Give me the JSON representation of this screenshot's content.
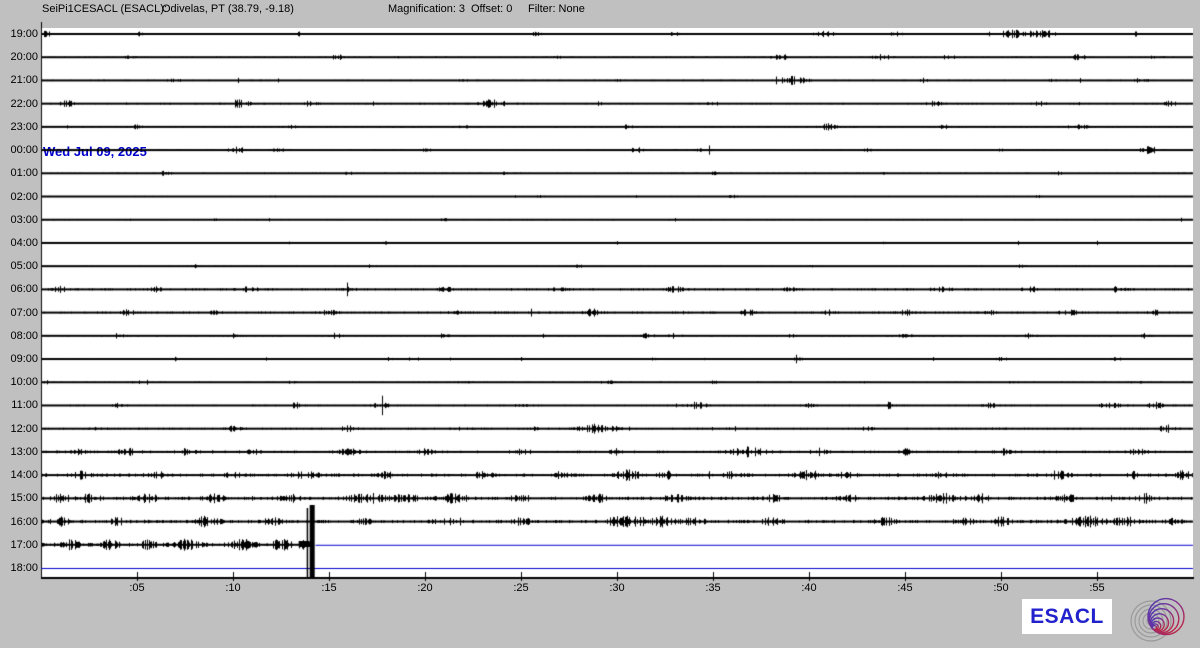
{
  "header": {
    "station": "SeiPi1CESACL (ESACL):",
    "location": "Odivelas, PT (38.79, -9.18)",
    "magnification_label": "Magnification: 3",
    "offset_label": "Offset: 0",
    "filter_label": "Filter: None"
  },
  "date_label": "Wed Jul 09, 2025",
  "branding": {
    "wordmark": "ESACL"
  },
  "colors": {
    "background": "#c0c0c0",
    "plot_background": "#ffffff",
    "trace": "#000000",
    "no_data_line": "#0000cc",
    "date_text": "#0000cc",
    "wordmark_text": "#2222cc"
  },
  "chart_data": {
    "type": "line",
    "kind": "helicorder",
    "minutes_per_row": 60,
    "minute_ticks": [
      ":05",
      ":10",
      ":15",
      ":20",
      ":25",
      ":30",
      ":35",
      ":40",
      ":45",
      ":50",
      ":55"
    ],
    "big_event": {
      "row_label": "17:00",
      "minute": 14.15,
      "description": "clipped high-amplitude spike spanning rows 16:00-17:00, data ends after this event"
    },
    "rows": [
      {
        "label": "19:00",
        "noise": 0.55,
        "end": 60,
        "events": [
          [
            0.3,
            2.5,
            0.25
          ],
          [
            5.2,
            1.5,
            0.2
          ],
          [
            13.5,
            1.5,
            0.2
          ],
          [
            25.8,
            1.8,
            0.3
          ],
          [
            33,
            1.5,
            0.25
          ],
          [
            40.8,
            2,
            0.5
          ],
          [
            44.5,
            1.8,
            0.3
          ],
          [
            50.8,
            2.8,
            1.1
          ],
          [
            52.3,
            2.2,
            0.5
          ],
          [
            57,
            1.8,
            0.3
          ]
        ]
      },
      {
        "label": "20:00",
        "noise": 0.55,
        "end": 60,
        "events": [
          [
            4.5,
            1.5,
            0.25
          ],
          [
            15.4,
            2,
            0.3
          ],
          [
            27,
            1.3,
            0.2
          ],
          [
            38.5,
            2.2,
            0.4
          ],
          [
            43.8,
            1.8,
            0.5
          ],
          [
            47.3,
            1.8,
            0.4
          ],
          [
            54,
            1.8,
            0.45
          ],
          [
            58,
            1.5,
            0.3
          ]
        ]
      },
      {
        "label": "21:00",
        "noise": 0.55,
        "end": 60,
        "events": [
          [
            7,
            1.8,
            0.3
          ],
          [
            22,
            1.4,
            0.25
          ],
          [
            30,
            1.3,
            0.2
          ],
          [
            39.2,
            2.8,
            0.8
          ],
          [
            46,
            1.5,
            0.3
          ],
          [
            52.5,
            1.4,
            0.25
          ],
          [
            57.2,
            1.8,
            0.35
          ]
        ]
      },
      {
        "label": "22:00",
        "noise": 0.6,
        "end": 60,
        "events": [
          [
            1.4,
            2.2,
            0.4
          ],
          [
            10.3,
            2.6,
            0.6
          ],
          [
            14,
            1.8,
            0.35
          ],
          [
            23.6,
            3,
            0.7
          ],
          [
            29,
            1.5,
            0.3
          ],
          [
            35,
            1.5,
            0.3
          ],
          [
            46.5,
            1.8,
            0.4
          ],
          [
            52,
            1.5,
            0.3
          ],
          [
            58.8,
            2,
            0.3
          ]
        ]
      },
      {
        "label": "23:00",
        "noise": 0.6,
        "end": 60,
        "events": [
          [
            5,
            1.4,
            0.25
          ],
          [
            13,
            1.5,
            0.3
          ],
          [
            22,
            1.3,
            0.25
          ],
          [
            30.5,
            1.4,
            0.3
          ],
          [
            41,
            2.2,
            0.4
          ],
          [
            47,
            1.4,
            0.3
          ],
          [
            54,
            1.8,
            0.45
          ]
        ]
      },
      {
        "label": "00:00",
        "noise": 0.6,
        "end": 60,
        "events": [
          [
            3,
            1.4,
            0.25
          ],
          [
            10.2,
            2.2,
            0.4
          ],
          [
            12.3,
            1.8,
            0.3
          ],
          [
            20,
            1.3,
            0.25
          ],
          [
            31,
            1.8,
            0.3
          ],
          [
            34.5,
            1.4,
            0.3
          ],
          [
            43,
            1.4,
            0.35
          ],
          [
            50,
            1.3,
            0.25
          ],
          [
            57.6,
            2.2,
            0.4
          ]
        ]
      },
      {
        "label": "01:00",
        "noise": 0.55,
        "end": 60,
        "events": [
          [
            6.5,
            1.8,
            0.3
          ],
          [
            16,
            1.2,
            0.2
          ],
          [
            24,
            1.3,
            0.25
          ],
          [
            35,
            1.2,
            0.2
          ],
          [
            44,
            1.3,
            0.25
          ],
          [
            53,
            1.2,
            0.2
          ]
        ]
      },
      {
        "label": "02:00",
        "noise": 0.45,
        "end": 60,
        "events": [
          [
            12,
            1.3,
            0.2
          ],
          [
            26,
            1.1,
            0.2
          ],
          [
            36,
            1.1,
            0.2
          ],
          [
            52,
            1.2,
            0.2
          ]
        ]
      },
      {
        "label": "03:00",
        "noise": 0.45,
        "end": 60,
        "events": [
          [
            9,
            1.1,
            0.2
          ],
          [
            21,
            1.2,
            0.2
          ],
          [
            33,
            1.1,
            0.2
          ],
          [
            48,
            1.2,
            0.2
          ]
        ]
      },
      {
        "label": "04:00",
        "noise": 0.45,
        "end": 60,
        "events": [
          [
            2,
            1.4,
            0.2
          ],
          [
            18,
            1.1,
            0.2
          ],
          [
            30,
            1.2,
            0.2
          ],
          [
            44,
            1.1,
            0.2
          ],
          [
            55,
            1.2,
            0.2
          ]
        ]
      },
      {
        "label": "05:00",
        "noise": 0.45,
        "end": 60,
        "events": [
          [
            8,
            1.1,
            0.2
          ],
          [
            17,
            1.2,
            0.2
          ],
          [
            28,
            1.1,
            0.2
          ],
          [
            40,
            1.2,
            0.2
          ],
          [
            51,
            1.1,
            0.2
          ]
        ]
      },
      {
        "label": "06:00",
        "noise": 0.8,
        "end": 60,
        "events": [
          [
            1,
            1.8,
            0.4
          ],
          [
            6,
            1.5,
            0.3
          ],
          [
            10.8,
            1.8,
            0.45
          ],
          [
            16,
            1.5,
            0.35
          ],
          [
            21,
            1.7,
            0.4
          ],
          [
            27,
            1.5,
            0.35
          ],
          [
            33,
            1.8,
            0.45
          ],
          [
            39,
            1.5,
            0.35
          ],
          [
            46.8,
            2.2,
            0.5
          ],
          [
            51.5,
            1.8,
            0.4
          ],
          [
            56,
            1.8,
            0.4
          ]
        ]
      },
      {
        "label": "07:00",
        "noise": 0.8,
        "end": 60,
        "events": [
          [
            4.5,
            1.8,
            0.35
          ],
          [
            9,
            1.5,
            0.3
          ],
          [
            15,
            1.8,
            0.45
          ],
          [
            21.5,
            1.5,
            0.35
          ],
          [
            28.8,
            2.6,
            0.5
          ],
          [
            36.8,
            1.8,
            0.4
          ],
          [
            41,
            1.5,
            0.3
          ],
          [
            45,
            1.8,
            0.4
          ],
          [
            49.5,
            1.5,
            0.35
          ],
          [
            53.5,
            1.8,
            0.45
          ],
          [
            58,
            1.5,
            0.3
          ]
        ]
      },
      {
        "label": "08:00",
        "noise": 0.6,
        "end": 60,
        "events": [
          [
            4,
            1.6,
            0.3
          ],
          [
            10,
            1.4,
            0.3
          ],
          [
            15.5,
            1.3,
            0.25
          ],
          [
            21,
            1.6,
            0.35
          ],
          [
            26,
            1.3,
            0.25
          ],
          [
            31.5,
            1.8,
            0.35
          ],
          [
            33,
            1.6,
            0.3
          ],
          [
            39,
            1.3,
            0.25
          ],
          [
            45,
            1.4,
            0.3
          ],
          [
            51.5,
            1.6,
            0.35
          ],
          [
            57.5,
            1.8,
            0.3
          ]
        ]
      },
      {
        "label": "09:00",
        "noise": 0.5,
        "end": 60,
        "events": [
          [
            7,
            1.2,
            0.25
          ],
          [
            18,
            1.2,
            0.25
          ],
          [
            25,
            1.3,
            0.25
          ],
          [
            32,
            1.2,
            0.25
          ],
          [
            39.5,
            1.8,
            0.35
          ],
          [
            45,
            1.2,
            0.25
          ],
          [
            50,
            1.4,
            0.3
          ],
          [
            56,
            1.2,
            0.25
          ]
        ]
      },
      {
        "label": "10:00",
        "noise": 0.5,
        "end": 60,
        "events": [
          [
            5,
            1.2,
            0.25
          ],
          [
            13,
            1.2,
            0.25
          ],
          [
            22,
            1.2,
            0.25
          ],
          [
            29.5,
            1.6,
            0.3
          ],
          [
            35,
            1.4,
            0.3
          ],
          [
            43,
            1.2,
            0.25
          ],
          [
            50.5,
            1.4,
            0.3
          ],
          [
            57,
            1.2,
            0.25
          ]
        ]
      },
      {
        "label": "11:00",
        "noise": 0.6,
        "end": 60,
        "events": [
          [
            4,
            1.4,
            0.3
          ],
          [
            13.3,
            2.3,
            0.4
          ],
          [
            17.7,
            2.3,
            0.4
          ],
          [
            25,
            1.4,
            0.3
          ],
          [
            34.2,
            2.5,
            0.45
          ],
          [
            40,
            1.4,
            0.3
          ],
          [
            44.2,
            3.5,
            0.12
          ],
          [
            49.5,
            1.8,
            0.4
          ],
          [
            55.5,
            2.2,
            0.7
          ],
          [
            58,
            2.2,
            0.45
          ]
        ]
      },
      {
        "label": "12:00",
        "noise": 0.7,
        "end": 60,
        "events": [
          [
            3,
            1.5,
            0.3
          ],
          [
            10,
            1.8,
            0.4
          ],
          [
            16,
            1.8,
            0.4
          ],
          [
            22,
            1.5,
            0.3
          ],
          [
            26,
            1.8,
            0.45
          ],
          [
            28.8,
            3,
            0.8
          ],
          [
            30.2,
            2.2,
            0.45
          ],
          [
            36,
            1.5,
            0.3
          ],
          [
            43,
            1.5,
            0.35
          ],
          [
            50,
            1.5,
            0.35
          ],
          [
            58.6,
            2.6,
            0.35
          ]
        ]
      },
      {
        "label": "13:00",
        "noise": 1.0,
        "end": 60,
        "events": [
          [
            2,
            1.8,
            0.4
          ],
          [
            4.5,
            2.2,
            0.5
          ],
          [
            7.5,
            2.2,
            0.45
          ],
          [
            11,
            1.8,
            0.4
          ],
          [
            16,
            2.2,
            0.5
          ],
          [
            20,
            1.8,
            0.4
          ],
          [
            25,
            1.8,
            0.45
          ],
          [
            30,
            1.8,
            0.4
          ],
          [
            36.8,
            3,
            0.8
          ],
          [
            40.5,
            2.2,
            0.45
          ],
          [
            45,
            1.8,
            0.4
          ],
          [
            50,
            1.8,
            0.4
          ],
          [
            57,
            2.2,
            0.45
          ]
        ]
      },
      {
        "label": "14:00",
        "noise": 1.2,
        "end": 60,
        "events": [
          [
            2,
            2.2,
            0.45
          ],
          [
            6,
            2.2,
            0.5
          ],
          [
            10,
            1.9,
            0.4
          ],
          [
            13.8,
            2.6,
            0.6
          ],
          [
            18,
            1.9,
            0.4
          ],
          [
            23,
            1.9,
            0.45
          ],
          [
            27,
            1.9,
            0.4
          ],
          [
            30.5,
            3,
            0.7
          ],
          [
            32.5,
            2.6,
            0.5
          ],
          [
            36,
            2,
            0.45
          ],
          [
            40,
            2.6,
            0.7
          ],
          [
            42,
            2.4,
            0.5
          ],
          [
            47,
            2,
            0.45
          ],
          [
            53,
            2.6,
            0.55
          ],
          [
            57,
            2,
            0.4
          ],
          [
            59.5,
            3.2,
            0.3
          ]
        ]
      },
      {
        "label": "15:00",
        "noise": 1.3,
        "end": 60,
        "events": [
          [
            1,
            2.4,
            0.5
          ],
          [
            2.5,
            2.6,
            0.5
          ],
          [
            5.5,
            2.6,
            0.6
          ],
          [
            9,
            2.2,
            0.5
          ],
          [
            13,
            2.2,
            0.5
          ],
          [
            17,
            3,
            0.9
          ],
          [
            19,
            2.6,
            0.6
          ],
          [
            21.5,
            2.8,
            0.7
          ],
          [
            25,
            2.2,
            0.5
          ],
          [
            29,
            2.2,
            0.5
          ],
          [
            33,
            2.2,
            0.5
          ],
          [
            38,
            2.2,
            0.5
          ],
          [
            42,
            2.2,
            0.5
          ],
          [
            47,
            3,
            0.9
          ],
          [
            49,
            2.6,
            0.55
          ],
          [
            53.5,
            2.6,
            0.5
          ],
          [
            57.5,
            3,
            0.5
          ]
        ]
      },
      {
        "label": "16:00",
        "noise": 1.3,
        "end": 60,
        "events": [
          [
            1,
            2.6,
            0.5
          ],
          [
            4,
            2.2,
            0.5
          ],
          [
            8.6,
            3,
            0.8
          ],
          [
            12,
            2.2,
            0.5
          ],
          [
            17,
            2.2,
            0.5
          ],
          [
            21,
            2.2,
            0.5
          ],
          [
            25,
            2.2,
            0.5
          ],
          [
            30.5,
            3.4,
            1.0
          ],
          [
            32.2,
            3,
            0.7
          ],
          [
            34,
            2.6,
            0.5
          ],
          [
            38,
            2.2,
            0.5
          ],
          [
            44,
            2.6,
            0.55
          ],
          [
            48,
            2.2,
            0.5
          ],
          [
            50,
            2.6,
            0.45
          ],
          [
            54.5,
            3,
            0.9
          ],
          [
            56.5,
            2.8,
            0.55
          ],
          [
            59,
            2.4,
            0.4
          ]
        ]
      },
      {
        "label": "17:00",
        "noise": 1.4,
        "end": 14.0,
        "blue_from": 14.3,
        "events": [
          [
            1.5,
            2.6,
            0.5
          ],
          [
            3.5,
            2.6,
            0.55
          ],
          [
            5.5,
            2.4,
            0.5
          ],
          [
            7.5,
            3,
            0.7
          ],
          [
            10.5,
            3,
            0.7
          ],
          [
            12.5,
            3,
            0.6
          ],
          [
            13.8,
            2.6,
            0.4
          ]
        ]
      },
      {
        "label": "18:00",
        "noise": 0,
        "end": 0,
        "blue_from": 0,
        "events": []
      }
    ]
  }
}
